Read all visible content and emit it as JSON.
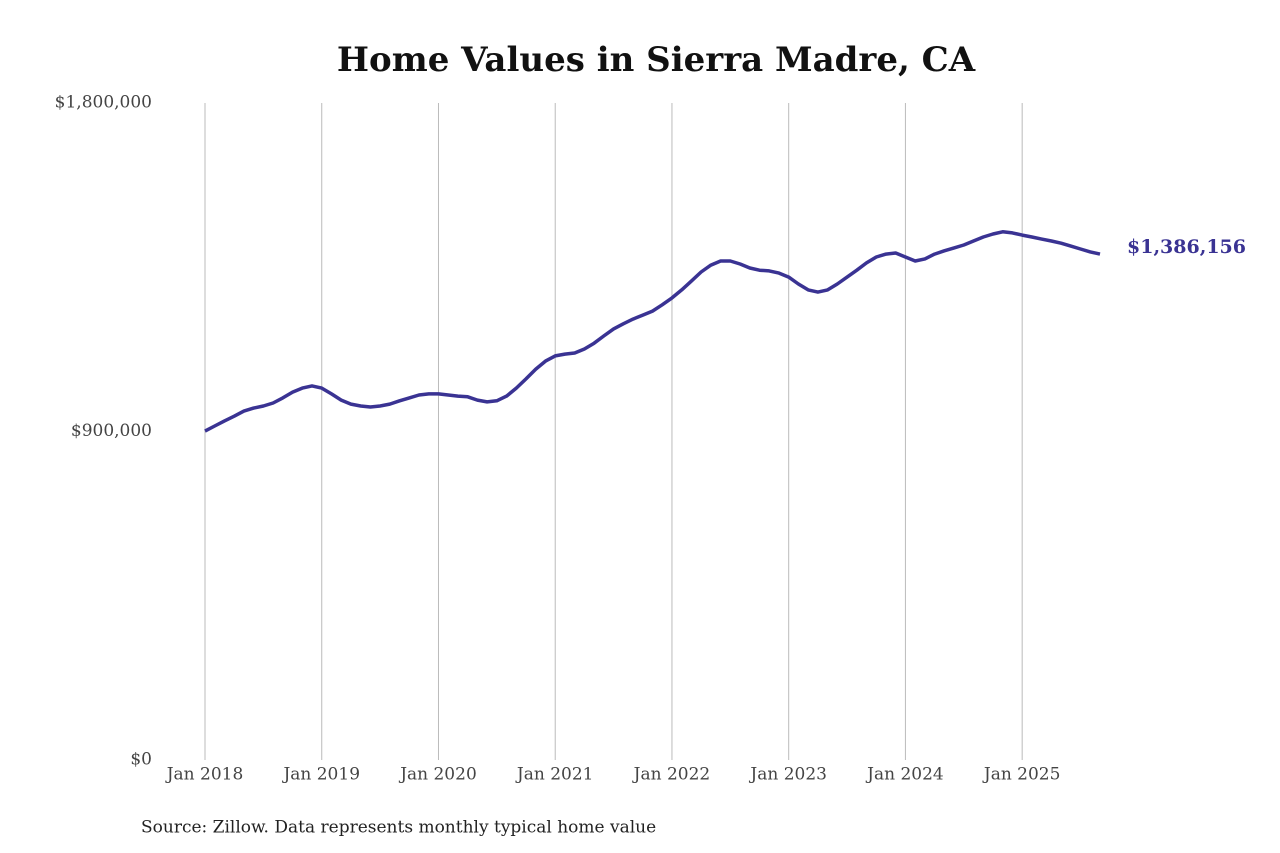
{
  "chart_data": {
    "type": "line",
    "title": "Home Values in Sierra Madre, CA",
    "source": "Source: Zillow. Data represents monthly typical home value",
    "x": [
      "2018-01",
      "2018-02",
      "2018-03",
      "2018-04",
      "2018-05",
      "2018-06",
      "2018-07",
      "2018-08",
      "2018-09",
      "2018-10",
      "2018-11",
      "2018-12",
      "2019-01",
      "2019-02",
      "2019-03",
      "2019-04",
      "2019-05",
      "2019-06",
      "2019-07",
      "2019-08",
      "2019-09",
      "2019-10",
      "2019-11",
      "2019-12",
      "2020-01",
      "2020-02",
      "2020-03",
      "2020-04",
      "2020-05",
      "2020-06",
      "2020-07",
      "2020-08",
      "2020-09",
      "2020-10",
      "2020-11",
      "2020-12",
      "2021-01",
      "2021-02",
      "2021-03",
      "2021-04",
      "2021-05",
      "2021-06",
      "2021-07",
      "2021-08",
      "2021-09",
      "2021-10",
      "2021-11",
      "2021-12",
      "2022-01",
      "2022-02",
      "2022-03",
      "2022-04",
      "2022-05",
      "2022-06",
      "2022-07",
      "2022-08",
      "2022-09",
      "2022-10",
      "2022-11",
      "2022-12",
      "2023-01",
      "2023-02",
      "2023-03",
      "2023-04",
      "2023-05",
      "2023-06",
      "2023-07",
      "2023-08",
      "2023-09",
      "2023-10",
      "2023-11",
      "2023-12",
      "2024-01",
      "2024-02",
      "2024-03",
      "2024-04",
      "2024-05",
      "2024-06",
      "2024-07",
      "2024-08",
      "2024-09",
      "2024-10",
      "2024-11",
      "2024-12",
      "2025-01",
      "2025-02",
      "2025-03",
      "2025-04",
      "2025-05",
      "2025-06",
      "2025-07",
      "2025-08",
      "2025-09"
    ],
    "series": [
      {
        "name": "Home value",
        "color": "#3a3393",
        "values": [
          901000,
          915000,
          929000,
          942000,
          956000,
          964000,
          970000,
          978000,
          992000,
          1008000,
          1019000,
          1025000,
          1019000,
          1003000,
          986000,
          975000,
          970000,
          967000,
          970000,
          975000,
          984000,
          992000,
          1000000,
          1003000,
          1003000,
          1000000,
          997000,
          995000,
          986000,
          981000,
          984000,
          997000,
          1019000,
          1044000,
          1071000,
          1093000,
          1107000,
          1112000,
          1115000,
          1126000,
          1142000,
          1162000,
          1181000,
          1195000,
          1208000,
          1219000,
          1230000,
          1247000,
          1266000,
          1288000,
          1312000,
          1337000,
          1356000,
          1367000,
          1367000,
          1359000,
          1348000,
          1342000,
          1340000,
          1334000,
          1323000,
          1304000,
          1288000,
          1282000,
          1288000,
          1304000,
          1323000,
          1342000,
          1362000,
          1378000,
          1386000,
          1389000,
          1378000,
          1367000,
          1373000,
          1386000,
          1395000,
          1403000,
          1411000,
          1422000,
          1433000,
          1441000,
          1447000,
          1444000,
          1438000,
          1433000,
          1427000,
          1422000,
          1416000,
          1408000,
          1400000,
          1392000,
          1386156
        ],
        "value_labels": [
          null,
          null,
          null,
          null,
          null,
          null,
          null,
          null,
          null,
          null,
          null,
          null,
          null,
          null,
          null,
          null,
          null,
          null,
          null,
          null,
          null,
          null,
          null,
          null,
          null,
          null,
          null,
          null,
          null,
          null,
          null,
          null,
          null,
          null,
          null,
          null,
          null,
          null,
          null,
          null,
          null,
          null,
          null,
          null,
          null,
          null,
          null,
          null,
          null,
          null,
          null,
          null,
          null,
          null,
          null,
          null,
          null,
          null,
          null,
          null,
          null,
          null,
          null,
          null,
          null,
          null,
          null,
          null,
          null,
          null,
          null,
          null,
          null,
          null,
          null,
          null,
          null,
          null,
          null,
          null,
          null,
          null,
          null,
          null,
          null,
          null,
          null,
          null,
          null,
          null,
          null,
          null,
          "$1,386,156"
        ]
      }
    ],
    "xlim": [
      "2018-01",
      "2025-09"
    ],
    "xticks": [
      {
        "value": "2018-01",
        "label": "Jan 2018"
      },
      {
        "value": "2019-01",
        "label": "Jan 2019"
      },
      {
        "value": "2020-01",
        "label": "Jan 2020"
      },
      {
        "value": "2021-01",
        "label": "Jan 2021"
      },
      {
        "value": "2022-01",
        "label": "Jan 2022"
      },
      {
        "value": "2023-01",
        "label": "Jan 2023"
      },
      {
        "value": "2024-01",
        "label": "Jan 2024"
      },
      {
        "value": "2025-01",
        "label": "Jan 2025"
      }
    ],
    "ylim": [
      0,
      1800000
    ],
    "yticks": [
      {
        "value": 0,
        "label": "$0"
      },
      {
        "value": 900000,
        "label": "$900,000"
      },
      {
        "value": 1800000,
        "label": "$1,800,000"
      }
    ],
    "grid": "x"
  }
}
